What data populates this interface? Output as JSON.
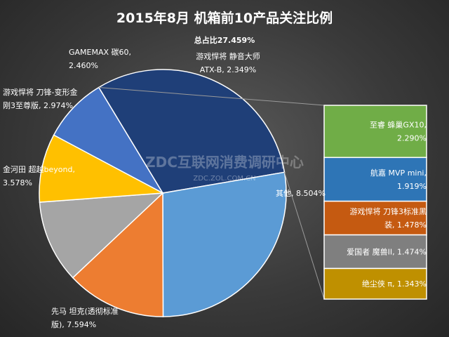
{
  "chart_data": {
    "type": "pie",
    "title": "2015年8月 机箱前10产品关注比例",
    "subtitle": "总占比27.459%",
    "slices": [
      {
        "name": "游戏悍将 静音大师 ATX-B",
        "value": 2.349,
        "label": [
          "游戏悍将 静音大师",
          "ATX-B, 2.349%"
        ],
        "color": "#4472c4"
      },
      {
        "name": "其他",
        "value": 8.504,
        "label": [
          "其他, 8.504%"
        ],
        "color": "#1f3f78"
      },
      {
        "name": "先马 坦克(透彻标准版)",
        "value": 7.594,
        "label": [
          "先马 坦克(透彻标准",
          "版), 7.594%"
        ],
        "color": "#5b9bd5"
      },
      {
        "name": "金河田 超越beyond",
        "value": 3.578,
        "label": [
          "金河田 超越beyond,",
          "3.578%"
        ],
        "color": "#ed7d31"
      },
      {
        "name": "游戏悍将 刀锋-变形金刚3至尊版",
        "value": 2.974,
        "label": [
          "游戏悍将 刀锋-变形金",
          "刚3至尊版, 2.974%"
        ],
        "color": "#a5a5a5"
      },
      {
        "name": "GAMEMAX 碳60",
        "value": 2.46,
        "label": [
          "GAMEMAX 碳60,",
          "2.460%"
        ],
        "color": "#ffc000"
      }
    ],
    "breakdown": [
      {
        "name": "至睿 蜂巢GX10",
        "value": 2.29,
        "label": [
          "至睿 蜂巢GX10,",
          "2.290%"
        ],
        "color": "#70ad47"
      },
      {
        "name": "航嘉 MVP mini",
        "value": 1.919,
        "label": [
          "航嘉 MVP mini,",
          "1.919%"
        ],
        "color": "#2e75b6"
      },
      {
        "name": "游戏悍将 刀锋3标准黑装",
        "value": 1.478,
        "label": [
          "游戏悍将 刀锋3标准黑",
          "装, 1.478%"
        ],
        "color": "#c55a11"
      },
      {
        "name": "爱国者 魔兽II",
        "value": 1.474,
        "label": [
          "爱国者 魔兽II, 1.474%"
        ],
        "color": "#7f7f7f"
      },
      {
        "name": "绝尘侠 π",
        "value": 1.343,
        "label": [
          "绝尘侠 π, 1.343%"
        ],
        "color": "#bf9000"
      }
    ],
    "legend": "none"
  },
  "watermark": {
    "line1": "ZDC互联网消费调研中心",
    "line2": "ZDC.ZOL.COM.CN"
  }
}
